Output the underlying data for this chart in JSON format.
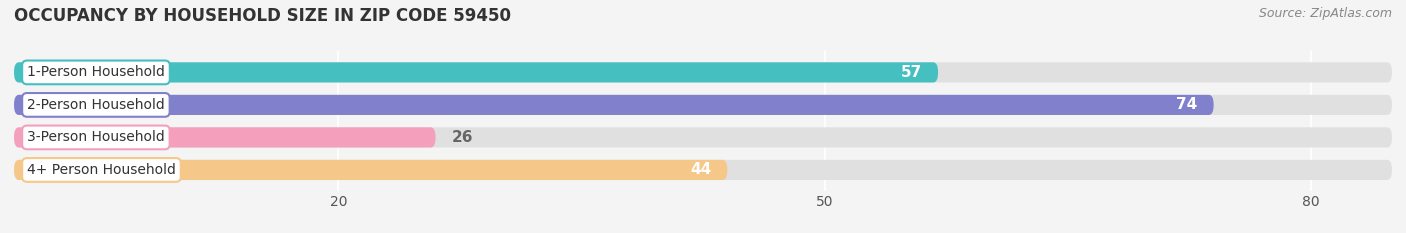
{
  "title": "OCCUPANCY BY HOUSEHOLD SIZE IN ZIP CODE 59450",
  "source": "Source: ZipAtlas.com",
  "categories": [
    "1-Person Household",
    "2-Person Household",
    "3-Person Household",
    "4+ Person Household"
  ],
  "values": [
    57,
    74,
    26,
    44
  ],
  "bar_colors": [
    "#45bfbf",
    "#8080cc",
    "#f4a0bc",
    "#f5c88a"
  ],
  "label_border_colors": [
    "#45bfbf",
    "#8080cc",
    "#f4a0bc",
    "#f5c88a"
  ],
  "value_label_color_inside": "#ffffff",
  "value_label_color_outside": "#666666",
  "xlim": [
    0,
    85
  ],
  "xticks": [
    20,
    50,
    80
  ],
  "title_fontsize": 12,
  "source_fontsize": 9,
  "bar_label_fontsize": 11,
  "category_fontsize": 10,
  "background_color": "#f4f4f4",
  "bar_bg_color": "#e0e0e0",
  "bar_height": 0.62,
  "bar_spacing": 1.0,
  "value_inside_threshold": 40
}
